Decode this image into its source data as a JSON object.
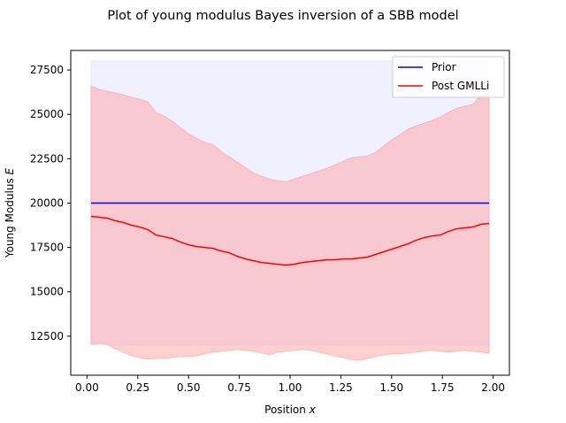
{
  "chart_data": {
    "type": "line",
    "title": "Plot of young modulus Bayes inversion of a SBB model",
    "xlabel": "Position",
    "xlabel_var": "x",
    "ylabel": "Young Modulus",
    "ylabel_var": "E",
    "xlim": [
      -0.08,
      2.08
    ],
    "ylim": [
      10300,
      28600
    ],
    "xticks": [
      0.0,
      0.25,
      0.5,
      0.75,
      1.0,
      1.25,
      1.5,
      1.75,
      2.0
    ],
    "xtick_labels": [
      "0.00",
      "0.25",
      "0.50",
      "0.75",
      "1.00",
      "1.25",
      "1.50",
      "1.75",
      "2.00"
    ],
    "yticks": [
      12500,
      15000,
      17500,
      20000,
      22500,
      25000,
      27500
    ],
    "ytick_labels": [
      "12500",
      "15000",
      "17500",
      "20000",
      "22500",
      "25000",
      "27500"
    ],
    "grid": false,
    "legend_position": "top-right",
    "x": [
      0.02,
      0.06,
      0.1,
      0.14,
      0.18,
      0.22,
      0.26,
      0.3,
      0.34,
      0.38,
      0.42,
      0.46,
      0.5,
      0.54,
      0.58,
      0.62,
      0.66,
      0.7,
      0.74,
      0.78,
      0.82,
      0.86,
      0.9,
      0.94,
      0.98,
      1.02,
      1.06,
      1.1,
      1.14,
      1.18,
      1.22,
      1.26,
      1.3,
      1.34,
      1.38,
      1.42,
      1.46,
      1.5,
      1.54,
      1.58,
      1.62,
      1.66,
      1.7,
      1.74,
      1.78,
      1.82,
      1.86,
      1.9,
      1.94,
      1.98
    ],
    "series": [
      {
        "name": "Prior",
        "color": "#0000ff",
        "values": [
          20000,
          20000,
          20000,
          20000,
          20000,
          20000,
          20000,
          20000,
          20000,
          20000,
          20000,
          20000,
          20000,
          20000,
          20000,
          20000,
          20000,
          20000,
          20000,
          20000,
          20000,
          20000,
          20000,
          20000,
          20000,
          20000,
          20000,
          20000,
          20000,
          20000,
          20000,
          20000,
          20000,
          20000,
          20000,
          20000,
          20000,
          20000,
          20000,
          20000,
          20000,
          20000,
          20000,
          20000,
          20000,
          20000,
          20000,
          20000,
          20000,
          20000
        ],
        "band_lower": [
          12000,
          12000,
          12000,
          12000,
          12000,
          12000,
          12000,
          12000,
          12000,
          12000,
          12000,
          12000,
          12000,
          12000,
          12000,
          12000,
          12000,
          12000,
          12000,
          12000,
          12000,
          12000,
          12000,
          12000,
          12000,
          12000,
          12000,
          12000,
          12000,
          12000,
          12000,
          12000,
          12000,
          12000,
          12000,
          12000,
          12000,
          12000,
          12000,
          12000,
          12000,
          12000,
          12000,
          12000,
          12000,
          12000,
          12000,
          12000,
          12000,
          12000
        ],
        "band_upper": [
          28000,
          28000,
          28000,
          28000,
          28000,
          28000,
          28000,
          28000,
          28000,
          28000,
          28000,
          28000,
          28000,
          28000,
          28000,
          28000,
          28000,
          28000,
          28000,
          28000,
          28000,
          28000,
          28000,
          28000,
          28000,
          28000,
          28000,
          28000,
          28000,
          28000,
          28000,
          28000,
          28000,
          28000,
          28000,
          28000,
          28000,
          28000,
          28000,
          28000,
          28000,
          28000,
          28000,
          28000,
          28000,
          28000,
          28000,
          28000,
          28000,
          28000
        ],
        "band_color": "#e4e4ff"
      },
      {
        "name": "Post GMLLi",
        "color": "#ff0000",
        "values": [
          19250,
          19200,
          19150,
          19000,
          18900,
          18750,
          18650,
          18500,
          18200,
          18100,
          18000,
          17800,
          17650,
          17550,
          17500,
          17450,
          17300,
          17200,
          17000,
          16850,
          16750,
          16650,
          16600,
          16550,
          16500,
          16550,
          16650,
          16700,
          16750,
          16800,
          16800,
          16850,
          16850,
          16900,
          16950,
          17100,
          17250,
          17400,
          17550,
          17700,
          17900,
          18050,
          18150,
          18200,
          18400,
          18550,
          18600,
          18650,
          18800,
          18850
        ],
        "band_lower": [
          12050,
          12100,
          12050,
          11800,
          11600,
          11400,
          11300,
          11200,
          11250,
          11250,
          11300,
          11350,
          11350,
          11400,
          11500,
          11600,
          11650,
          11700,
          11750,
          11700,
          11650,
          11550,
          11450,
          11600,
          11650,
          11700,
          11750,
          11700,
          11600,
          11500,
          11400,
          11300,
          11200,
          11150,
          11250,
          11350,
          11450,
          11500,
          11500,
          11550,
          11600,
          11650,
          11700,
          11650,
          11600,
          11650,
          11700,
          11650,
          11600,
          11550
        ],
        "band_upper": [
          26600,
          26400,
          26300,
          26200,
          26100,
          25950,
          25850,
          25700,
          25100,
          24900,
          24600,
          24250,
          23900,
          23650,
          23400,
          23300,
          22900,
          22600,
          22300,
          22000,
          21700,
          21500,
          21350,
          21250,
          21200,
          21350,
          21500,
          21650,
          21800,
          21950,
          22150,
          22350,
          22550,
          22600,
          22650,
          22850,
          23200,
          23550,
          23850,
          24150,
          24350,
          24500,
          24650,
          24850,
          25100,
          25350,
          25450,
          25550,
          26100,
          26250
        ],
        "band_color": "#ffaaaa"
      }
    ]
  }
}
